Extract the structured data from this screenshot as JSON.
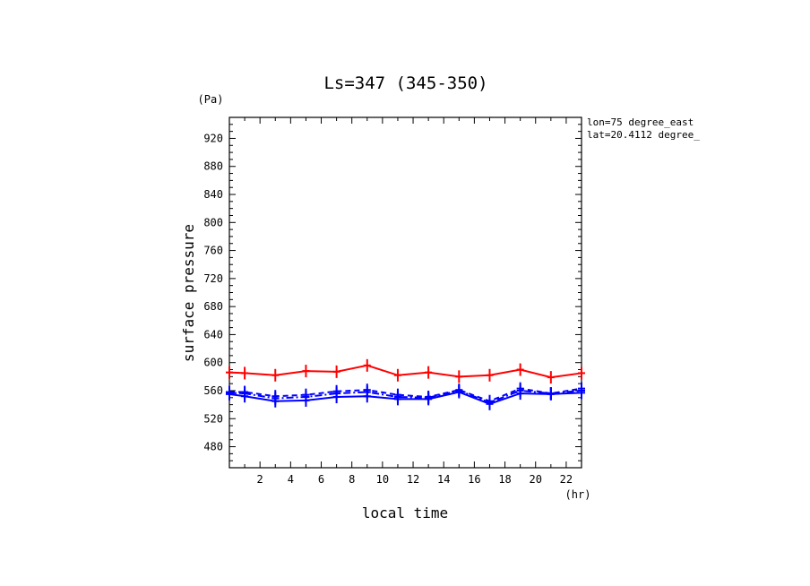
{
  "chart_data": {
    "type": "line",
    "title": "Ls=347 (345-350)",
    "xlabel": "local time",
    "ylabel": "surface pressure",
    "x_unit": "(hr)",
    "y_unit": "(Pa)",
    "xlim": [
      0,
      23
    ],
    "ylim": [
      450,
      950
    ],
    "x_ticks": [
      2,
      4,
      6,
      8,
      10,
      12,
      14,
      16,
      18,
      20,
      22
    ],
    "y_ticks": [
      480,
      520,
      560,
      600,
      640,
      680,
      720,
      760,
      800,
      840,
      880,
      920
    ],
    "annotations": [
      "lon=75 degree_east",
      "lat=20.4112 degree_"
    ],
    "grid": false,
    "x": [
      0,
      1,
      3,
      5,
      7,
      9,
      11,
      13,
      15,
      17,
      19,
      21,
      23
    ],
    "series": [
      {
        "color": "#ff0000",
        "style": "solid",
        "marker": "plus",
        "values": [
          586,
          585,
          582,
          588,
          587,
          596,
          582,
          586,
          580,
          582,
          590,
          579,
          585
        ]
      },
      {
        "color": "#0000ff",
        "style": "solid",
        "marker": "plus",
        "values": [
          555,
          552,
          545,
          546,
          551,
          552,
          548,
          548,
          558,
          541,
          556,
          555,
          557
        ]
      },
      {
        "color": "#0000ff",
        "style": "dashed",
        "marker": "plus",
        "values": [
          558,
          558,
          552,
          554,
          559,
          561,
          554,
          551,
          561,
          545,
          563,
          556,
          563
        ]
      },
      {
        "color": "#0000ff",
        "style": "dash-dot",
        "marker": "plus",
        "values": [
          557,
          556,
          549,
          551,
          556,
          558,
          551,
          550,
          560,
          543,
          560,
          556,
          560
        ]
      }
    ]
  }
}
